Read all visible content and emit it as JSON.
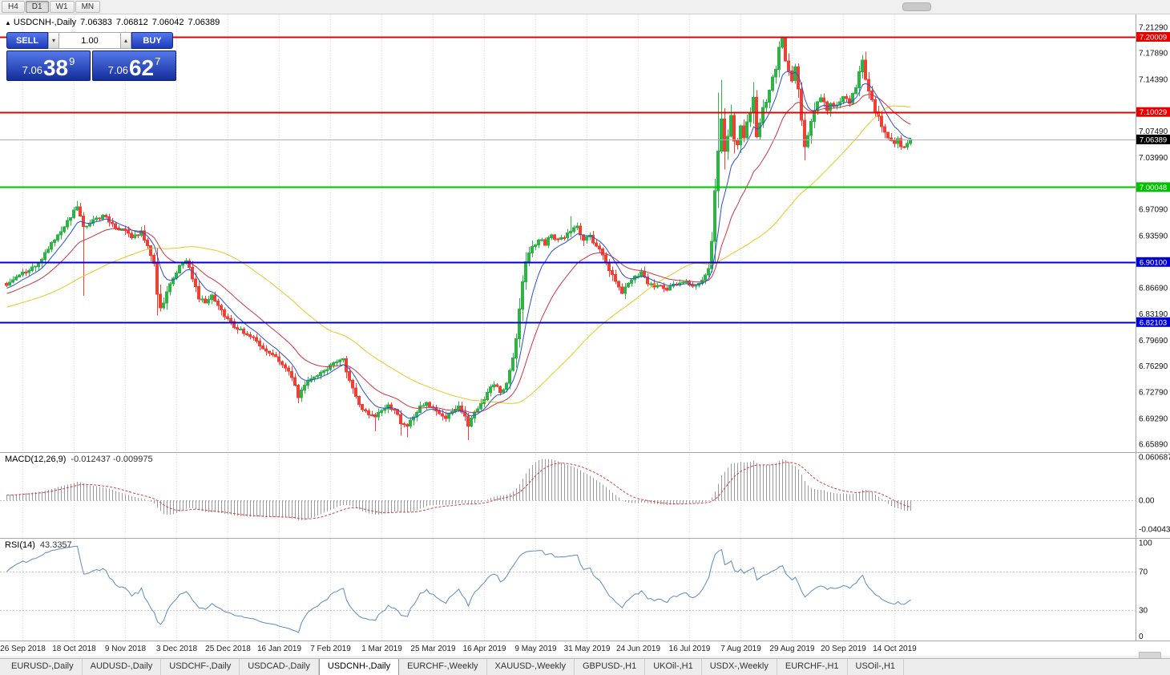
{
  "colors": {
    "up": "#2eb347",
    "down": "#ee4136",
    "ma_fast": "#2a4fd6",
    "ma_mid": "#cc3344",
    "ma_slow": "#e8c61e",
    "macd_hist": "#9a9a9a",
    "macd_signal": "#d04040",
    "rsi_line": "#5b8cbe",
    "grid": "#dcdcdc",
    "separator": "#a8a8a8",
    "level_red": "#e60000",
    "level_green": "#00c000",
    "level_blue": "#0000d2",
    "current_line": "#b0b0b0",
    "current_badge": "#000000"
  },
  "toolbar": {
    "timeframes": [
      "H4",
      "D1",
      "W1",
      "MN"
    ],
    "active": "D1"
  },
  "chart_header": {
    "marker": "▲",
    "symbol": "USDCNH-,Daily",
    "open": "7.06383",
    "high": "7.06812",
    "low": "7.06042",
    "close": "7.06389"
  },
  "one_click": {
    "sell_label": "SELL",
    "buy_label": "BUY",
    "volume": "1.00",
    "spinner_down": "▾",
    "spinner_up": "▴",
    "sell_price": {
      "prefix": "7.06",
      "big": "38",
      "sup": "9"
    },
    "buy_price": {
      "prefix": "7.06",
      "big": "62",
      "sup": "7"
    }
  },
  "indicator_headers": {
    "macd": "MACD(12,26,9)",
    "macd_values": "-0.012437 -0.009975",
    "rsi": "RSI(14)",
    "rsi_value": "43.3357"
  },
  "chart_data": {
    "type": "candlestick",
    "symbol": "USDCNH",
    "timeframe": "Daily",
    "ohlc_display": {
      "open": 7.06383,
      "high": 7.06812,
      "low": 7.06042,
      "close": 7.06389
    },
    "y_axis": {
      "min": 6.6589,
      "max": 7.2129,
      "ticks": [
        {
          "p": 7.2129,
          "t": "7.21290"
        },
        {
          "p": 7.1789,
          "t": "7.17890"
        },
        {
          "p": 7.1439,
          "t": "7.14390"
        },
        {
          "p": 7.0749,
          "t": "7.07490"
        },
        {
          "p": 7.0399,
          "t": "7.03990"
        },
        {
          "p": 6.9709,
          "t": "6.97090"
        },
        {
          "p": 6.9359,
          "t": "6.93590"
        },
        {
          "p": 6.8669,
          "t": "6.86690"
        },
        {
          "p": 6.8319,
          "t": "6.83190"
        },
        {
          "p": 6.7969,
          "t": "6.79690"
        },
        {
          "p": 6.7629,
          "t": "6.76290"
        },
        {
          "p": 6.7279,
          "t": "6.72790"
        },
        {
          "p": 6.6929,
          "t": "6.69290"
        },
        {
          "p": 6.6589,
          "t": "6.65890"
        }
      ]
    },
    "price_levels": [
      {
        "price": 7.20009,
        "label": "7.20009",
        "color": "red"
      },
      {
        "price": 7.10029,
        "label": "7.10029",
        "color": "red"
      },
      {
        "price": 7.00048,
        "label": "7.00048",
        "color": "green"
      },
      {
        "price": 6.901,
        "label": "6.90100",
        "color": "blue"
      },
      {
        "price": 6.82103,
        "label": "6.82103",
        "color": "blue"
      }
    ],
    "current_price": {
      "price": 7.06389,
      "label": "7.06389"
    },
    "x_axis_labels": [
      "26 Sep 2018",
      "18 Oct 2018",
      "9 Nov 2018",
      "3 Dec 2018",
      "25 Dec 2018",
      "16 Jan 2019",
      "7 Feb 2019",
      "1 Mar 2019",
      "25 Mar 2019",
      "16 Apr 2019",
      "9 May 2019",
      "31 May 2019",
      "24 Jun 2019",
      "16 Jul 2019",
      "7 Aug 2019",
      "29 Aug 2019",
      "20 Sep 2019",
      "14 Oct 2019"
    ],
    "first_label_index": 5,
    "candles_per_label": 16,
    "num_candles": 283,
    "price_path": [
      [
        0,
        6.87
      ],
      [
        4,
        6.884
      ],
      [
        8,
        6.892
      ],
      [
        12,
        6.912
      ],
      [
        16,
        6.938
      ],
      [
        19,
        6.955
      ],
      [
        22,
        6.974
      ],
      [
        24,
        6.946
      ],
      [
        27,
        6.954
      ],
      [
        30,
        6.964
      ],
      [
        33,
        6.95
      ],
      [
        36,
        6.944
      ],
      [
        39,
        6.932
      ],
      [
        42,
        6.94
      ],
      [
        44,
        6.92
      ],
      [
        46,
        6.9
      ],
      [
        47,
        6.858
      ],
      [
        48,
        6.838
      ],
      [
        50,
        6.86
      ],
      [
        52,
        6.88
      ],
      [
        54,
        6.894
      ],
      [
        56,
        6.902
      ],
      [
        58,
        6.88
      ],
      [
        60,
        6.852
      ],
      [
        62,
        6.846
      ],
      [
        64,
        6.856
      ],
      [
        66,
        6.846
      ],
      [
        68,
        6.83
      ],
      [
        70,
        6.82
      ],
      [
        72,
        6.812
      ],
      [
        74,
        6.808
      ],
      [
        76,
        6.802
      ],
      [
        78,
        6.795
      ],
      [
        80,
        6.786
      ],
      [
        82,
        6.778
      ],
      [
        84,
        6.774
      ],
      [
        86,
        6.766
      ],
      [
        88,
        6.758
      ],
      [
        90,
        6.74
      ],
      [
        91,
        6.722
      ],
      [
        93,
        6.74
      ],
      [
        95,
        6.748
      ],
      [
        97,
        6.752
      ],
      [
        99,
        6.757
      ],
      [
        101,
        6.762
      ],
      [
        103,
        6.767
      ],
      [
        105,
        6.772
      ],
      [
        107,
        6.744
      ],
      [
        109,
        6.72
      ],
      [
        111,
        6.706
      ],
      [
        113,
        6.7
      ],
      [
        115,
        6.695
      ],
      [
        117,
        6.704
      ],
      [
        119,
        6.712
      ],
      [
        121,
        6.704
      ],
      [
        123,
        6.688
      ],
      [
        125,
        6.681
      ],
      [
        127,
        6.697
      ],
      [
        129,
        6.707
      ],
      [
        131,
        6.713
      ],
      [
        133,
        6.709
      ],
      [
        135,
        6.701
      ],
      [
        137,
        6.695
      ],
      [
        139,
        6.701
      ],
      [
        141,
        6.711
      ],
      [
        143,
        6.697
      ],
      [
        144,
        6.683
      ],
      [
        146,
        6.699
      ],
      [
        148,
        6.714
      ],
      [
        150,
        6.726
      ],
      [
        152,
        6.74
      ],
      [
        154,
        6.729
      ],
      [
        156,
        6.738
      ],
      [
        158,
        6.775
      ],
      [
        159,
        6.8
      ],
      [
        160,
        6.838
      ],
      [
        161,
        6.876
      ],
      [
        162,
        6.902
      ],
      [
        163,
        6.912
      ],
      [
        164,
        6.92
      ],
      [
        166,
        6.933
      ],
      [
        168,
        6.925
      ],
      [
        170,
        6.936
      ],
      [
        172,
        6.929
      ],
      [
        174,
        6.934
      ],
      [
        176,
        6.944
      ],
      [
        178,
        6.947
      ],
      [
        180,
        6.93
      ],
      [
        182,
        6.934
      ],
      [
        184,
        6.924
      ],
      [
        186,
        6.911
      ],
      [
        188,
        6.892
      ],
      [
        190,
        6.873
      ],
      [
        192,
        6.86
      ],
      [
        194,
        6.874
      ],
      [
        196,
        6.883
      ],
      [
        198,
        6.887
      ],
      [
        200,
        6.873
      ],
      [
        202,
        6.867
      ],
      [
        204,
        6.872
      ],
      [
        206,
        6.864
      ],
      [
        208,
        6.869
      ],
      [
        210,
        6.872
      ],
      [
        212,
        6.876
      ],
      [
        214,
        6.869
      ],
      [
        216,
        6.874
      ],
      [
        218,
        6.881
      ],
      [
        219,
        6.894
      ],
      [
        220,
        6.93
      ],
      [
        221,
        6.996
      ],
      [
        222,
        7.048
      ],
      [
        223,
        7.092
      ],
      [
        224,
        7.046
      ],
      [
        225,
        7.068
      ],
      [
        226,
        7.098
      ],
      [
        227,
        7.064
      ],
      [
        228,
        7.056
      ],
      [
        229,
        7.08
      ],
      [
        230,
        7.064
      ],
      [
        231,
        7.088
      ],
      [
        232,
        7.098
      ],
      [
        233,
        7.122
      ],
      [
        234,
        7.07
      ],
      [
        235,
        7.084
      ],
      [
        236,
        7.104
      ],
      [
        237,
        7.114
      ],
      [
        238,
        7.13
      ],
      [
        239,
        7.144
      ],
      [
        240,
        7.16
      ],
      [
        241,
        7.184
      ],
      [
        242,
        7.195
      ],
      [
        243,
        7.171
      ],
      [
        244,
        7.152
      ],
      [
        245,
        7.142
      ],
      [
        246,
        7.158
      ],
      [
        247,
        7.129
      ],
      [
        248,
        7.09
      ],
      [
        249,
        7.054
      ],
      [
        250,
        7.068
      ],
      [
        251,
        7.085
      ],
      [
        252,
        7.103
      ],
      [
        253,
        7.115
      ],
      [
        254,
        7.121
      ],
      [
        255,
        7.111
      ],
      [
        256,
        7.103
      ],
      [
        257,
        7.113
      ],
      [
        259,
        7.107
      ],
      [
        261,
        7.121
      ],
      [
        263,
        7.113
      ],
      [
        265,
        7.131
      ],
      [
        266,
        7.151
      ],
      [
        267,
        7.167
      ],
      [
        268,
        7.145
      ],
      [
        269,
        7.129
      ],
      [
        270,
        7.117
      ],
      [
        271,
        7.103
      ],
      [
        272,
        7.093
      ],
      [
        273,
        7.081
      ],
      [
        274,
        7.073
      ],
      [
        275,
        7.069
      ],
      [
        276,
        7.061
      ],
      [
        277,
        7.057
      ],
      [
        278,
        7.063
      ],
      [
        279,
        7.055
      ],
      [
        280,
        7.051
      ],
      [
        281,
        7.059
      ],
      [
        282,
        7.0639
      ]
    ],
    "wicks": [
      {
        "i": 22,
        "high": 6.982
      },
      {
        "i": 24,
        "low": 6.856
      },
      {
        "i": 47,
        "low": 6.83
      },
      {
        "i": 91,
        "low": 6.713
      },
      {
        "i": 115,
        "low": 6.676
      },
      {
        "i": 123,
        "low": 6.67
      },
      {
        "i": 125,
        "low": 6.668
      },
      {
        "i": 144,
        "low": 6.664
      },
      {
        "i": 176,
        "high": 6.962
      },
      {
        "i": 222,
        "high": 7.126
      },
      {
        "i": 223,
        "high": 7.143
      },
      {
        "i": 233,
        "high": 7.14
      },
      {
        "i": 242,
        "high": 7.1965
      },
      {
        "i": 249,
        "low": 7.046
      },
      {
        "i": 267,
        "high": 7.176
      }
    ],
    "moving_averages": [
      {
        "name": "fast",
        "period": 8,
        "type": "ema",
        "color_key": "ma_fast"
      },
      {
        "name": "mid",
        "period": 21,
        "type": "ema",
        "color_key": "ma_mid"
      },
      {
        "name": "slow",
        "period": 55,
        "type": "sma",
        "color_key": "ma_slow"
      }
    ],
    "macd": {
      "params": [
        12,
        26,
        9
      ],
      "last_main": -0.012437,
      "last_signal": -0.009975,
      "axis": [
        {
          "v": 0.060687,
          "t": "0.060687"
        },
        {
          "v": 0,
          "t": "0.00"
        },
        {
          "v": -0.040432,
          "t": "-0.040432"
        }
      ]
    },
    "rsi": {
      "period": 14,
      "last": 43.3357,
      "levels": [
        70,
        30
      ],
      "axis": [
        {
          "v": 100,
          "t": "100"
        },
        {
          "v": 70,
          "t": "70"
        },
        {
          "v": 30,
          "t": "30"
        },
        {
          "v": 0,
          "t": "0"
        }
      ]
    }
  },
  "bottom_tabs": {
    "active": "USDCNH-,Daily",
    "tabs": [
      "EURUSD-,Daily",
      "AUDUSD-,Daily",
      "USDCHF-,Daily",
      "USDCAD-,Daily",
      "USDCNH-,Daily",
      "EURCHF-,Weekly",
      "XAUUSD-,Weekly",
      "GBPUSD-,H1",
      "UKOil-,H1",
      "USDX-,Weekly",
      "EURCHF-,H1",
      "USOil-,H1"
    ]
  }
}
